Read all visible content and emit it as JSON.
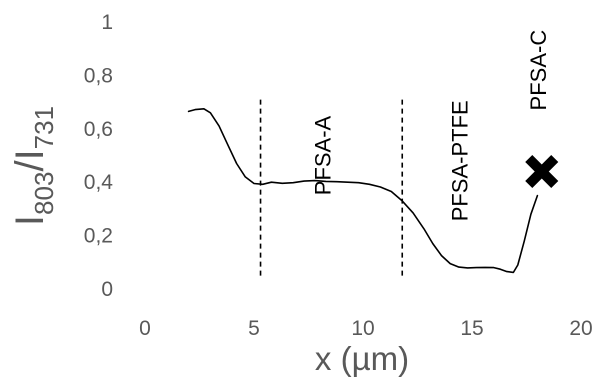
{
  "chart_data": {
    "type": "line",
    "xlabel": "x (µm)",
    "ylabel": {
      "base": "I",
      "num_sub": "803",
      "sep": "/I",
      "den_sub": "731"
    },
    "xlim": [
      0,
      20
    ],
    "ylim": [
      0,
      1
    ],
    "x_ticks": [
      {
        "value": 0,
        "label": "0"
      },
      {
        "value": 5,
        "label": "5"
      },
      {
        "value": 10,
        "label": "10"
      },
      {
        "value": 15,
        "label": "15"
      },
      {
        "value": 20,
        "label": "20"
      }
    ],
    "y_ticks": [
      {
        "value": 0,
        "label": "0"
      },
      {
        "value": 0.2,
        "label": "0,2"
      },
      {
        "value": 0.4,
        "label": "0,4"
      },
      {
        "value": 0.6,
        "label": "0,6"
      },
      {
        "value": 0.8,
        "label": "0,8"
      },
      {
        "value": 1,
        "label": "1"
      }
    ],
    "grid": false,
    "series": [
      {
        "color": "#000000",
        "points": [
          [
            2.0,
            0.665
          ],
          [
            2.3,
            0.672
          ],
          [
            2.7,
            0.675
          ],
          [
            3.0,
            0.66
          ],
          [
            3.4,
            0.61
          ],
          [
            3.8,
            0.54
          ],
          [
            4.2,
            0.47
          ],
          [
            4.6,
            0.42
          ],
          [
            5.0,
            0.395
          ],
          [
            5.4,
            0.392
          ],
          [
            5.8,
            0.4
          ],
          [
            6.3,
            0.396
          ],
          [
            6.8,
            0.398
          ],
          [
            7.3,
            0.404
          ],
          [
            7.8,
            0.406
          ],
          [
            8.3,
            0.403
          ],
          [
            8.8,
            0.402
          ],
          [
            9.3,
            0.4
          ],
          [
            9.8,
            0.398
          ],
          [
            10.3,
            0.392
          ],
          [
            10.8,
            0.382
          ],
          [
            11.3,
            0.365
          ],
          [
            11.8,
            0.33
          ],
          [
            12.3,
            0.285
          ],
          [
            12.8,
            0.225
          ],
          [
            13.2,
            0.17
          ],
          [
            13.6,
            0.125
          ],
          [
            14.0,
            0.095
          ],
          [
            14.4,
            0.082
          ],
          [
            14.8,
            0.079
          ],
          [
            15.2,
            0.08
          ],
          [
            15.6,
            0.081
          ],
          [
            16.0,
            0.08
          ],
          [
            16.3,
            0.074
          ],
          [
            16.6,
            0.065
          ],
          [
            16.9,
            0.062
          ],
          [
            17.1,
            0.09
          ],
          [
            17.4,
            0.18
          ],
          [
            17.7,
            0.28
          ],
          [
            18.0,
            0.35
          ]
        ]
      }
    ],
    "markers": [
      {
        "shape": "cross",
        "x": 18.2,
        "y": 0.44,
        "color": "#000000"
      }
    ],
    "boundaries": [
      {
        "x": 5.3,
        "style": "dashed"
      },
      {
        "x": 11.8,
        "style": "dashed"
      }
    ],
    "regions": [
      {
        "label": "PFSA-A",
        "x": 8.5,
        "y": 0.5
      },
      {
        "label": "PFSA-PTFE",
        "x": 14.8,
        "y": 0.48
      },
      {
        "label": "PFSA-C",
        "x": 18.4,
        "y": 0.82
      }
    ]
  }
}
